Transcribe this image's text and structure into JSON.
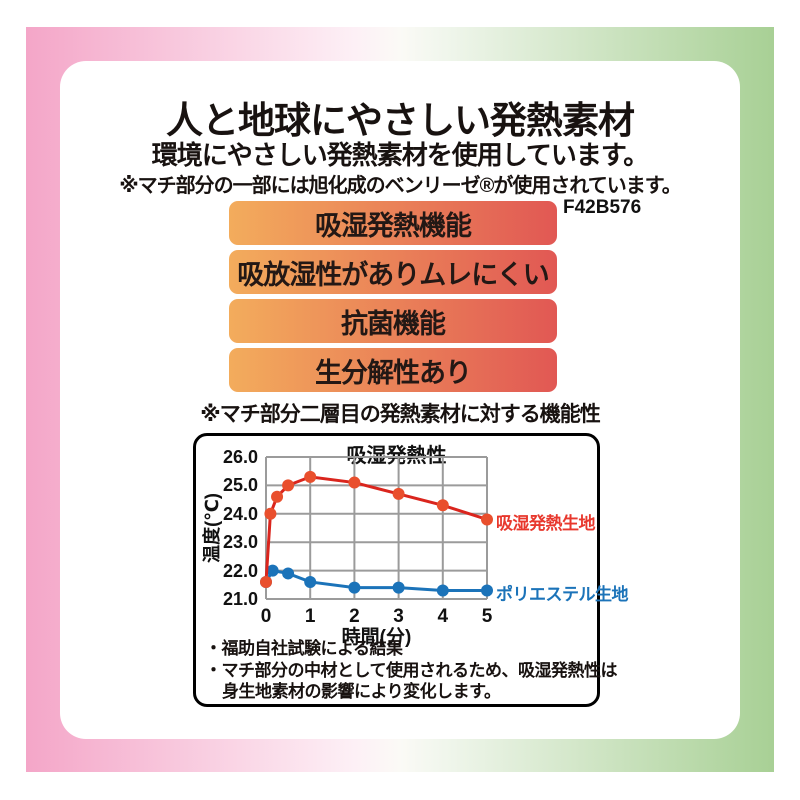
{
  "page": {
    "title": "人と地球にやさしい発熱素材",
    "subtitle": "環境にやさしい発熱素材を使用しています。",
    "note_top": "※マチ部分の一部には旭化成のベンリーゼ®が使用されています。",
    "product_code": "F42B576",
    "banners": [
      "吸湿発熱機能",
      "吸放湿性がありムレにくい",
      "抗菌機能",
      "生分解性あり"
    ],
    "note_banners": "※マチ部分二層目の発熱素材に対する機能性",
    "chart_notes": [
      "・福助自社試験による結果",
      "・マチ部分の中材として使用されるため、吸湿発熱性は",
      "身生地素材の影響により変化します。"
    ]
  },
  "colors": {
    "frame_pink": "#f4a6c8",
    "frame_green": "#a8d095",
    "banner_orange": "#f3ac5c",
    "banner_red": "#e15854",
    "text_dark": "#231815",
    "grid_gray": "#9b9b9b",
    "series_red_line": "#da251d",
    "series_red_point": "#e94f2d",
    "series_red_label": "#e8382d",
    "series_blue": "#1b73b9"
  },
  "chart_data": {
    "type": "line",
    "title": "吸湿発熱性",
    "xlabel": "時間(分)",
    "ylabel": "温度(℃)",
    "xlim": [
      0,
      5
    ],
    "ylim": [
      21.0,
      26.0
    ],
    "grid": true,
    "legend_position": "right-of-last-point",
    "xticks": [
      0,
      1,
      2,
      3,
      4,
      5
    ],
    "yticks": [
      26,
      25,
      24,
      23,
      22,
      21
    ],
    "ytick_labels": [
      "26.0",
      "25.0",
      "24.0",
      "23.0",
      "22.0",
      "21.0"
    ],
    "series": [
      {
        "key": "heat-generating-fabric",
        "name": "吸湿発熱生地",
        "line_color": "#da251d",
        "point_color": "#e94f2d",
        "label_color": "#e8382d",
        "points": [
          [
            0,
            21.6
          ],
          [
            0.1,
            24.0
          ],
          [
            0.25,
            24.6
          ],
          [
            0.5,
            25.0
          ],
          [
            1,
            25.3
          ],
          [
            2,
            25.1
          ],
          [
            3,
            24.7
          ],
          [
            4,
            24.3
          ],
          [
            5,
            23.8
          ]
        ]
      },
      {
        "key": "polyester-fabric",
        "name": "ポリエステル生地",
        "line_color": "#1b73b9",
        "point_color": "#1b73b9",
        "label_color": "#1b73b9",
        "points": [
          [
            0,
            21.6
          ],
          [
            0.15,
            22.0
          ],
          [
            0.5,
            21.9
          ],
          [
            1,
            21.6
          ],
          [
            2,
            21.4
          ],
          [
            3,
            21.4
          ],
          [
            4,
            21.3
          ],
          [
            5,
            21.3
          ]
        ]
      }
    ]
  }
}
